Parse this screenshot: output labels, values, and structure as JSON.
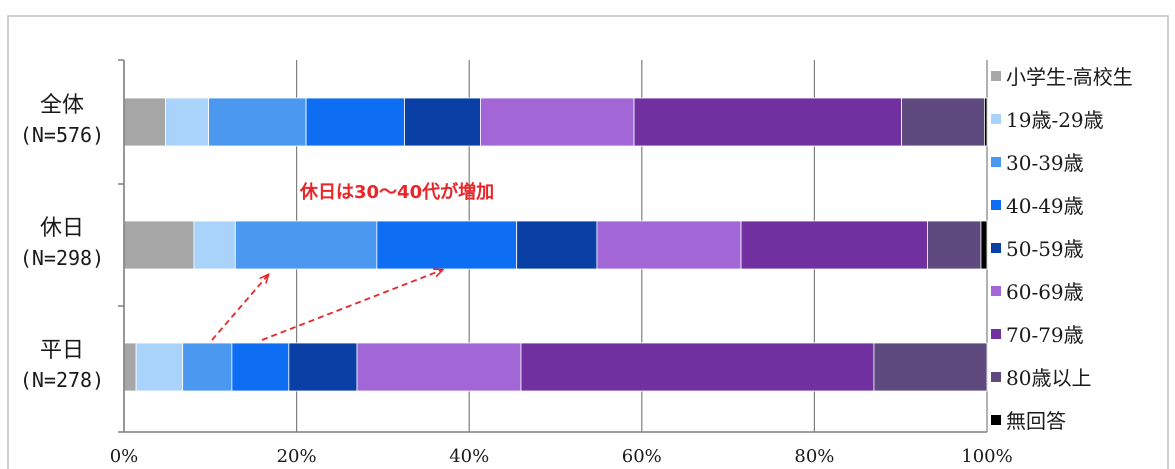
{
  "chart_data": {
    "type": "bar",
    "orientation": "horizontal",
    "stacked": "percent",
    "categories": [
      {
        "name": "全体",
        "n_label": "(N=576)"
      },
      {
        "name": "休日",
        "n_label": "(N=298)"
      },
      {
        "name": "平日",
        "n_label": "(N=278)"
      }
    ],
    "series": [
      {
        "name": "小学生-高校生",
        "color": "#a6a6a6",
        "values": [
          4.8,
          8.1,
          1.4
        ]
      },
      {
        "name": "19歳-29歳",
        "color": "#a9d3fb",
        "values": [
          5.0,
          4.8,
          5.4
        ]
      },
      {
        "name": "30-39歳",
        "color": "#4a98f0",
        "values": [
          11.3,
          16.4,
          5.7
        ]
      },
      {
        "name": "40-49歳",
        "color": "#0d6ef3",
        "values": [
          11.4,
          16.2,
          6.6
        ]
      },
      {
        "name": "50-59歳",
        "color": "#0a3fa5",
        "values": [
          8.8,
          9.3,
          7.9
        ]
      },
      {
        "name": "60-69歳",
        "color": "#a266d6",
        "values": [
          17.8,
          16.7,
          19.0
        ]
      },
      {
        "name": "70-79歳",
        "color": "#7030a0",
        "values": [
          31.0,
          21.6,
          40.9
        ]
      },
      {
        "name": "80歳以上",
        "color": "#5e4a7e",
        "values": [
          9.6,
          6.2,
          13.1
        ]
      },
      {
        "name": "無回答",
        "color": "#000000",
        "values": [
          0.3,
          0.7,
          0.0
        ]
      }
    ],
    "xlim": [
      0,
      100
    ],
    "x_ticks": [
      "0%",
      "20%",
      "40%",
      "60%",
      "80%",
      "100%"
    ],
    "grid": true,
    "legend_position": "right",
    "annotation": {
      "text": "休日は30～40代が増加",
      "color": "#e8262a"
    }
  }
}
